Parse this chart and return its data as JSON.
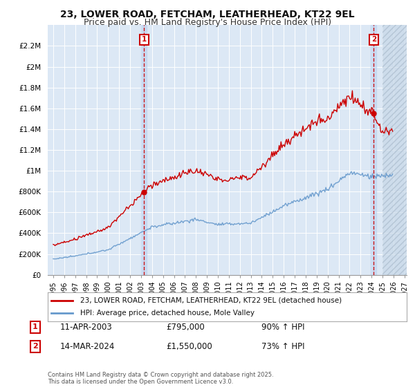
{
  "title": "23, LOWER ROAD, FETCHAM, LEATHERHEAD, KT22 9EL",
  "subtitle": "Price paid vs. HM Land Registry's House Price Index (HPI)",
  "title_fontsize": 10,
  "subtitle_fontsize": 9,
  "background_color": "#ffffff",
  "plot_bg_color": "#dce8f5",
  "grid_color": "#ffffff",
  "red_line_color": "#cc0000",
  "blue_line_color": "#6699cc",
  "ylim": [
    0,
    2400000
  ],
  "yticks": [
    0,
    200000,
    400000,
    600000,
    800000,
    1000000,
    1200000,
    1400000,
    1600000,
    1800000,
    2000000,
    2200000
  ],
  "ytick_labels": [
    "£0",
    "£200K",
    "£400K",
    "£600K",
    "£800K",
    "£1M",
    "£1.2M",
    "£1.4M",
    "£1.6M",
    "£1.8M",
    "£2M",
    "£2.2M"
  ],
  "xlim_start": 1994.5,
  "xlim_end": 2027.2,
  "xtick_labels": [
    "1995",
    "1996",
    "1997",
    "1998",
    "1999",
    "2000",
    "2001",
    "2002",
    "2003",
    "2004",
    "2005",
    "2006",
    "2007",
    "2008",
    "2009",
    "2010",
    "2011",
    "2012",
    "2013",
    "2014",
    "2015",
    "2016",
    "2017",
    "2018",
    "2019",
    "2020",
    "2021",
    "2022",
    "2023",
    "2024",
    "2025",
    "2026",
    "2027"
  ],
  "marker1_x": 2003.28,
  "marker1_label": "1",
  "marker2_x": 2024.2,
  "marker2_label": "2",
  "marker1_price": 795000,
  "marker2_price": 1550000,
  "legend_line1": "23, LOWER ROAD, FETCHAM, LEATHERHEAD, KT22 9EL (detached house)",
  "legend_line2": "HPI: Average price, detached house, Mole Valley",
  "annotation1_date": "11-APR-2003",
  "annotation1_price": "£795,000",
  "annotation1_hpi": "90% ↑ HPI",
  "annotation2_date": "14-MAR-2024",
  "annotation2_price": "£1,550,000",
  "annotation2_hpi": "73% ↑ HPI",
  "footer": "Contains HM Land Registry data © Crown copyright and database right 2025.\nThis data is licensed under the Open Government Licence v3.0."
}
